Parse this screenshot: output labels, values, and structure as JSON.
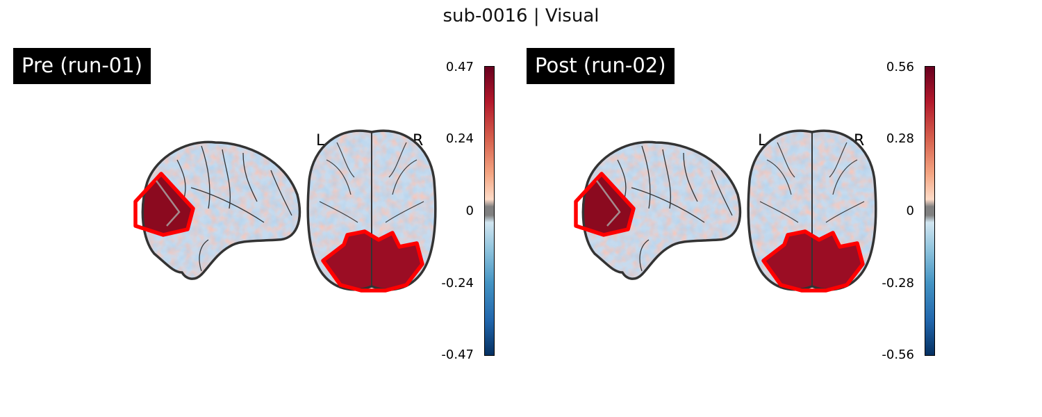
{
  "figure": {
    "title": "sub-0016 | Visual"
  },
  "panels": [
    {
      "label": "Pre (run-01)",
      "colorbar": {
        "ticks": [
          "0.47",
          "0.24",
          "0",
          "-0.24",
          "-0.47"
        ],
        "vmin": -0.47,
        "vmax": 0.47
      },
      "orientation": {
        "left": "L",
        "right": "R"
      }
    },
    {
      "label": "Post (run-02)",
      "colorbar": {
        "ticks": [
          "0.56",
          "0.28",
          "0",
          "-0.28",
          "-0.56"
        ],
        "vmin": -0.56,
        "vmax": 0.56
      },
      "orientation": {
        "left": "L",
        "right": "R"
      }
    }
  ],
  "colors": {
    "roi_outline": "#ff0000",
    "cmap_high": "#67001f",
    "cmap_low": "#053061",
    "brain_outline": "#333333"
  }
}
